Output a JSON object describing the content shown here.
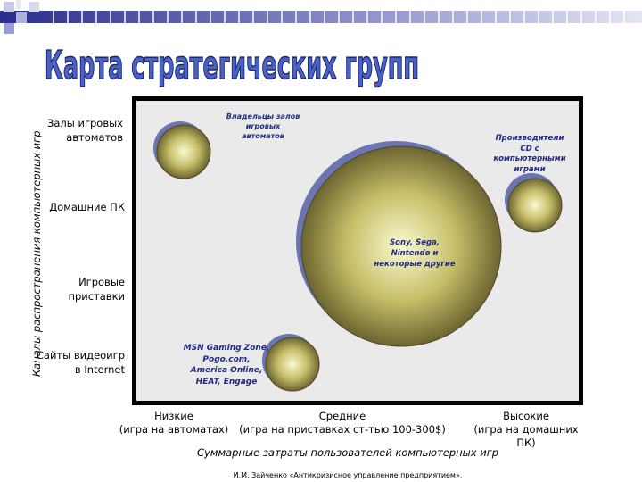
{
  "slide": {
    "title": "Карта стратегических групп",
    "footer": "И.М. Зайченко «Антикризисное управление предприятием»,"
  },
  "chart_data": {
    "type": "bubble",
    "title": "Карта стратегических групп",
    "ylabel": "Каналы распространения компьютерных игр",
    "xlabel": "Суммарные затраты пользователей компьютерных игр",
    "y_categories": [
      "Залы игровых автоматов",
      "Домашние ПК",
      "Игровые приставки",
      "Сайты видеоигр в Internet"
    ],
    "y_category_lines": [
      "Залы\nигровых\nавтоматов",
      "Домашние\nПК",
      "Игровые\nприставки",
      "Сайты\nвидеоигр\nв Internet"
    ],
    "x_categories": [
      "Низкие\n(игра на автоматах)",
      "Средние\n(игра на приставках ст-тью 100-300$)",
      "Высокие\n(игра на домашних\nПК)"
    ],
    "groups": [
      {
        "label": "Владельцы залов\nигровых\nавтоматов",
        "x": "Низкие",
        "y": "Залы игровых автоматов",
        "size": "small"
      },
      {
        "label": "Производители\nCD с\nкомпьютерными\nиграми",
        "x": "Высокие",
        "y": "Домашние ПК",
        "size": "small"
      },
      {
        "label": "Sony, Sega,\nNintendo и\nнекоторые другие",
        "x": "Средние",
        "y": "Игровые приставки",
        "size": "large"
      },
      {
        "label": "MSN Gaming Zone,\nPogo.com,\nAmerica Online,\nHEAT, Engage",
        "x": "Низкие",
        "y": "Сайты видеоигр в Internet",
        "size": "small"
      }
    ],
    "colors": {
      "bubble_light": "#fafad0",
      "bubble_mid": "#c6bd68",
      "bubble_dark": "#6d6530",
      "shadow": "#5560a8",
      "label": "#1f2a80"
    }
  }
}
